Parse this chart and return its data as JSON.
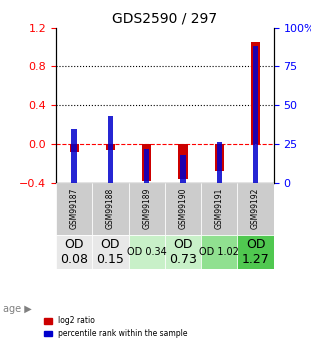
{
  "title": "GDS2590 / 297",
  "samples": [
    "GSM99187",
    "GSM99188",
    "GSM99189",
    "GSM99190",
    "GSM99191",
    "GSM99192"
  ],
  "log2_ratio": [
    -0.08,
    -0.06,
    -0.38,
    -0.36,
    -0.28,
    1.05
  ],
  "percentile_rank": [
    35,
    43,
    22,
    18,
    26,
    88
  ],
  "age_labels": [
    "OD\n0.08",
    "OD\n0.15",
    "OD 0.34",
    "OD\n0.73",
    "OD 1.02",
    "OD\n1.27"
  ],
  "age_bg_colors": [
    "#e8e8e8",
    "#e8e8e8",
    "#c8f0c8",
    "#c8f0c8",
    "#90e090",
    "#50c850"
  ],
  "age_font_sizes": [
    9,
    9,
    7,
    9,
    7,
    9
  ],
  "ylim_left": [
    -0.4,
    1.2
  ],
  "ylim_right": [
    0,
    100
  ],
  "yticks_left": [
    -0.4,
    0.0,
    0.4,
    0.8,
    1.2
  ],
  "yticks_right": [
    0,
    25,
    50,
    75,
    100
  ],
  "bar_color_red": "#cc0000",
  "bar_color_blue": "#0000cc",
  "bar_width": 0.25,
  "dotted_line_y": [
    0.4,
    0.8
  ],
  "background_plot": "#ffffff",
  "sample_bg_color": "#cccccc"
}
